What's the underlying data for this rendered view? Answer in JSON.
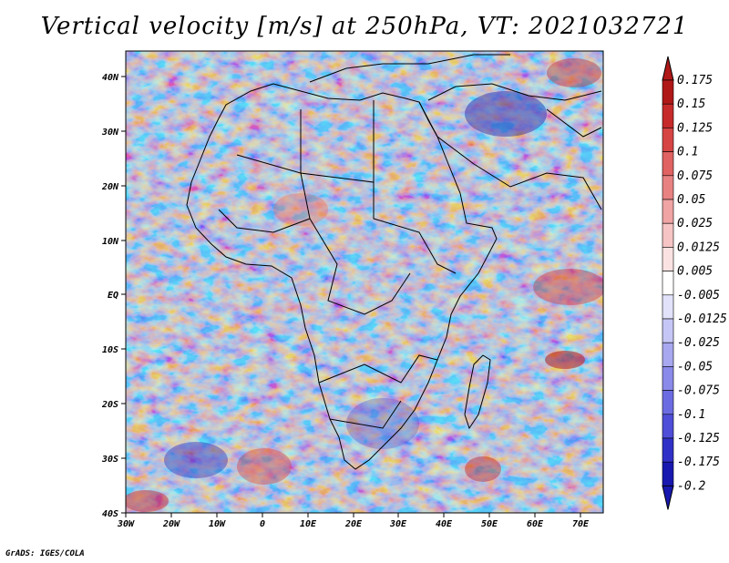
{
  "title": "Vertical velocity [m/s] at 250hPa, VT: 2021032721",
  "credit": "GrADS: IGES/COLA",
  "map": {
    "lon_labels": [
      "30W",
      "20W",
      "10W",
      "0",
      "10E",
      "20E",
      "30E",
      "40E",
      "50E",
      "60E",
      "70E"
    ],
    "lat_labels": [
      "40N",
      "30N",
      "20N",
      "10N",
      "EQ",
      "10S",
      "20S",
      "30S",
      "40S"
    ],
    "lon_range": [
      -30,
      75
    ],
    "lat_range": [
      -40,
      45
    ]
  },
  "colorbar": {
    "labels": [
      "0.175",
      "0.15",
      "0.125",
      "0.1",
      "0.075",
      "0.05",
      "0.025",
      "0.0125",
      "0.005",
      "-0.005",
      "-0.0125",
      "-0.025",
      "-0.05",
      "-0.075",
      "-0.1",
      "-0.125",
      "-0.175",
      "-0.2"
    ],
    "colors": [
      "#b01818",
      "#c62a2a",
      "#d64444",
      "#e06262",
      "#e88282",
      "#f0a4a4",
      "#f6c4c4",
      "#fbe2e2",
      "#ffffff",
      "#e2e2fb",
      "#c6c6f6",
      "#a8a8f0",
      "#8a8aea",
      "#6c6ce2",
      "#4e4ed8",
      "#3030c8",
      "#1818b0"
    ]
  },
  "colors": {
    "land_outline": "#000000",
    "background": "#ffffff"
  }
}
